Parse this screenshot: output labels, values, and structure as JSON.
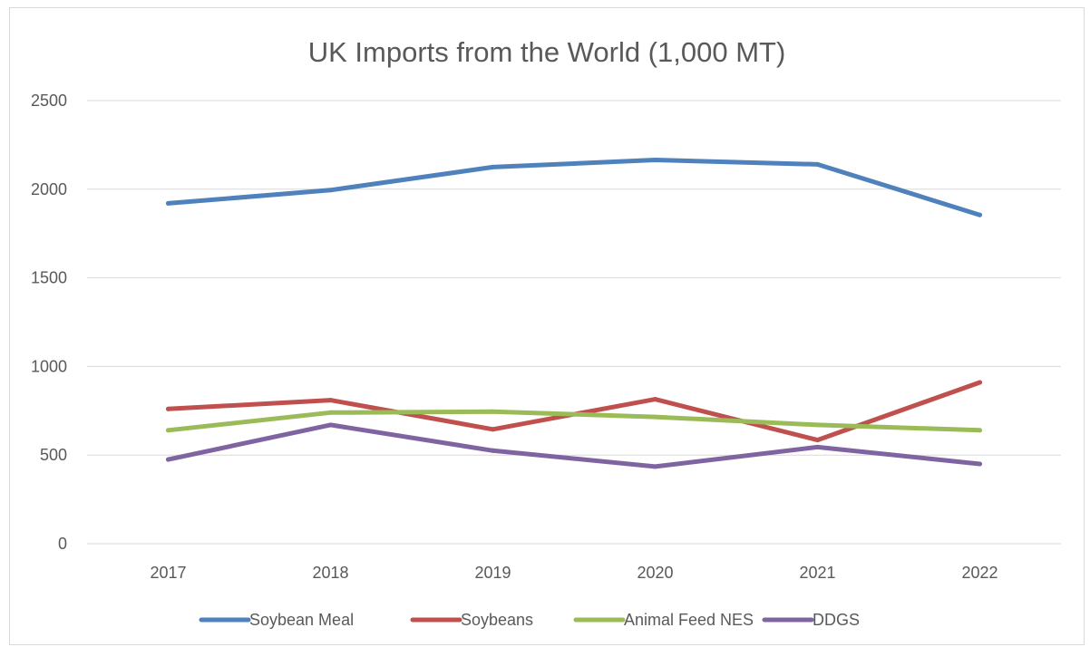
{
  "chart_data": {
    "type": "line",
    "title": "UK Imports from the World (1,000 MT)",
    "xlabel": "",
    "ylabel": "",
    "categories": [
      "2017",
      "2018",
      "2019",
      "2020",
      "2021",
      "2022"
    ],
    "ylim": [
      0,
      2500
    ],
    "yticks": [
      0,
      500,
      1000,
      1500,
      2000,
      2500
    ],
    "grid": true,
    "legend_position": "bottom",
    "series": [
      {
        "name": "Soybean Meal",
        "color": "#4f81bd",
        "values": [
          1920,
          1995,
          2125,
          2165,
          2140,
          1855
        ]
      },
      {
        "name": "Soybeans",
        "color": "#c0504d",
        "values": [
          760,
          810,
          645,
          815,
          585,
          910
        ]
      },
      {
        "name": "Animal Feed NES",
        "color": "#9bbb59",
        "values": [
          640,
          740,
          745,
          715,
          670,
          640
        ]
      },
      {
        "name": "DDGS",
        "color": "#8064a2",
        "values": [
          475,
          670,
          525,
          435,
          545,
          450
        ]
      }
    ]
  }
}
